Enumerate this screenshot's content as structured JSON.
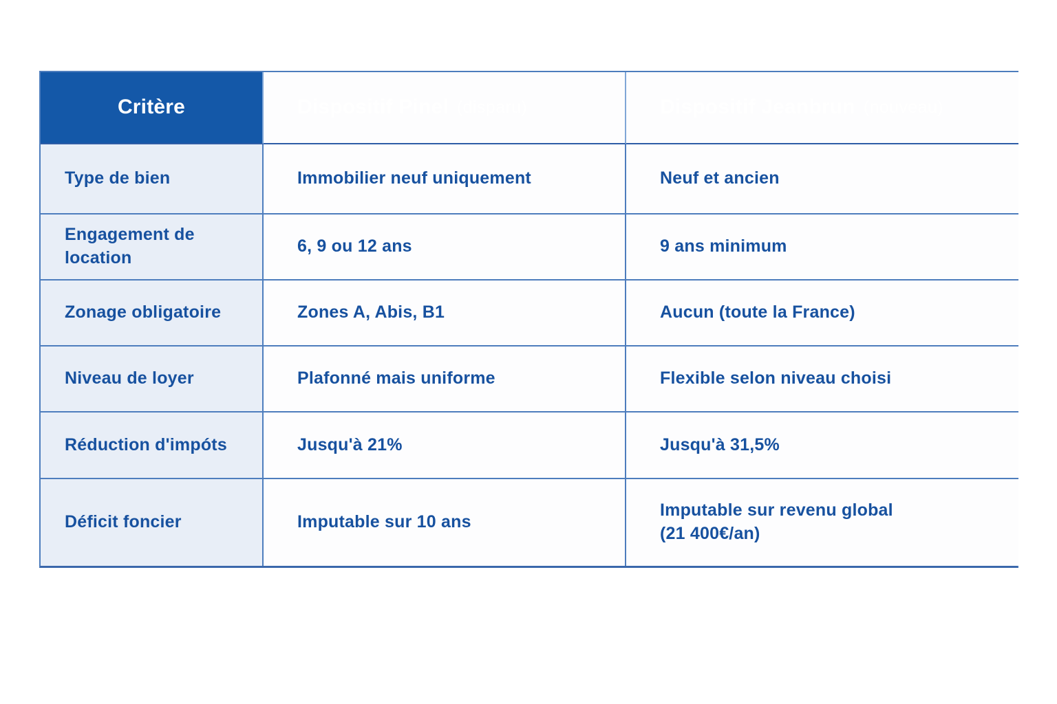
{
  "page": {
    "background": "#ffffff"
  },
  "table": {
    "colors": {
      "header_bg": "#1458a8",
      "header_text": "#ffffff",
      "criteria_col_bg": "#e8eef7",
      "value_cell_bg": "#fdfdfe",
      "body_text": "#17519f",
      "border": "#4d7dbd"
    },
    "header": {
      "criteria": "Critère",
      "pinel_main": "Dispositif Pinel",
      "pinel_note": "(disparu)",
      "jeanbrun_main": "Dispositif Jeanbrun",
      "jeanbrun_note": "(nouveau)"
    },
    "rows": [
      {
        "criterion": "Type de bien",
        "pinel": "Immobilier neuf uniquement",
        "jeanbrun": "Neuf et ancien"
      },
      {
        "criterion": "Engagement de location",
        "pinel": "6, 9 ou 12 ans",
        "jeanbrun": "9 ans minimum"
      },
      {
        "criterion": "Zonage obligatoire",
        "pinel": "Zones A, Abis, B1",
        "jeanbrun": "Aucun (toute la France)"
      },
      {
        "criterion": "Niveau de loyer",
        "pinel": "Plafonné mais uniforme",
        "jeanbrun": "Flexible selon niveau choisi"
      },
      {
        "criterion": "Réduction d'impóts",
        "pinel": "Jusqu'à 21%",
        "jeanbrun": "Jusqu'à 31,5%"
      },
      {
        "criterion": "Déficit foncier",
        "pinel": "Imputable sur 10 ans",
        "jeanbrun": "Imputable sur revenu global\n(21 400€/an)"
      }
    ]
  }
}
